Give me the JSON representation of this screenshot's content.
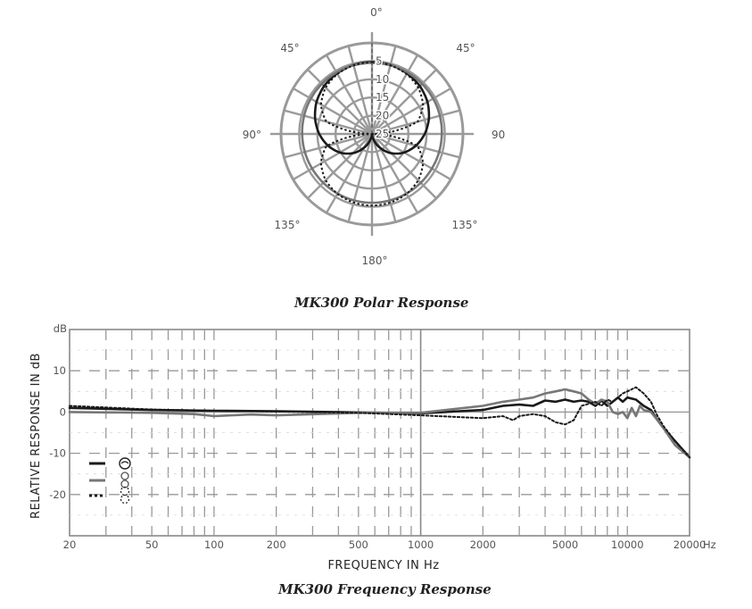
{
  "polar": {
    "caption": "MK300 Polar Response",
    "angle_labels": [
      "0°",
      "45°",
      "45°",
      "90°",
      "90",
      "135°",
      "135°",
      "180°"
    ],
    "ring_labels": [
      "5",
      "10",
      "15",
      "20",
      "25"
    ]
  },
  "frequency": {
    "caption": "MK300 Frequency Response",
    "xlabel": "FREQUENCY IN Hz",
    "ylabel": "RELATIVE RESPONSE IN dB",
    "db_unit": "dB",
    "hz_unit": "Hz"
  },
  "colors": {
    "solid": "#1a1a1a",
    "gray": "#777777",
    "dotted": "#1a1a1a",
    "grid": "#888888"
  },
  "chart_data": [
    {
      "type": "polar",
      "title": "MK300 Polar Response",
      "r_ticks_db": [
        -5,
        -10,
        -15,
        -20,
        -25
      ],
      "r_range_db": [
        -25,
        0
      ],
      "angle_step_deg": 15,
      "series": [
        {
          "style": "solid",
          "pattern": "cardioid",
          "angles": [
            0,
            15,
            30,
            45,
            60,
            75,
            90,
            105,
            120,
            135,
            150,
            165,
            180,
            195,
            210,
            225,
            240,
            255,
            270,
            285,
            300,
            315,
            330,
            345
          ],
          "db": [
            -5.3,
            -5.4,
            -5.8,
            -6.4,
            -7.4,
            -8.8,
            -10.5,
            -12.5,
            -14.8,
            -17.5,
            -20.6,
            -23.5,
            -25,
            -23.5,
            -20.6,
            -17.5,
            -14.8,
            -12.5,
            -10.5,
            -8.8,
            -7.4,
            -6.4,
            -5.8,
            -5.4
          ]
        },
        {
          "style": "gray",
          "pattern": "omni",
          "angles": [
            0,
            30,
            60,
            90,
            120,
            150,
            180,
            210,
            240,
            270,
            300,
            330
          ],
          "db": [
            -5.5,
            -5.5,
            -5.6,
            -5.8,
            -6.0,
            -6.1,
            -6.1,
            -6.1,
            -6.0,
            -5.8,
            -5.6,
            -5.5
          ]
        },
        {
          "style": "dotted",
          "pattern": "figure-8",
          "angles": [
            0,
            15,
            30,
            45,
            60,
            75,
            90,
            105,
            120,
            135,
            150,
            165,
            180,
            195,
            210,
            225,
            240,
            255,
            270,
            285,
            300,
            315,
            330,
            345
          ],
          "db": [
            -5.3,
            -5.5,
            -6.0,
            -7.0,
            -8.8,
            -12.0,
            -25,
            -12.0,
            -8.8,
            -7.0,
            -6.0,
            -5.5,
            -5.3,
            -5.5,
            -6.0,
            -7.0,
            -8.8,
            -12.0,
            -25,
            -12.0,
            -8.8,
            -7.0,
            -6.0,
            -5.5
          ]
        }
      ]
    },
    {
      "type": "line",
      "title": "MK300 Frequency Response",
      "xlabel": "FREQUENCY IN Hz",
      "ylabel": "RELATIVE RESPONSE IN dB",
      "x_scale": "log",
      "xlim": [
        20,
        20000
      ],
      "ylim": [
        -30,
        20
      ],
      "x_ticks": [
        20,
        50,
        100,
        200,
        500,
        1000,
        2000,
        5000,
        10000,
        20000
      ],
      "x_tick_labels": [
        "20",
        "50",
        "100",
        "200",
        "500",
        "1000",
        "2000",
        "5000",
        "10000",
        "20000"
      ],
      "y_ticks": [
        10,
        0,
        -10,
        -20
      ],
      "y_tick_labels": [
        "10",
        "0",
        "-10",
        "-20"
      ],
      "grid": true,
      "legend": [
        "cardioid",
        "omni",
        "figure-8"
      ],
      "series": [
        {
          "style": "solid",
          "pattern": "cardioid",
          "x": [
            20,
            50,
            100,
            200,
            500,
            1000,
            1300,
            2000,
            2500,
            3000,
            3500,
            4000,
            4500,
            5000,
            5500,
            6000,
            6500,
            7000,
            7500,
            8000,
            8500,
            9000,
            9500,
            10000,
            11000,
            12000,
            13000,
            14000,
            15000,
            17000,
            20000
          ],
          "y": [
            1,
            0.5,
            0.3,
            0.2,
            -0.1,
            -0.3,
            0,
            0.5,
            1.5,
            1.8,
            1.5,
            2.8,
            2.5,
            3,
            2.5,
            2.8,
            2.5,
            1.5,
            2.8,
            1.5,
            2.5,
            3.5,
            2.5,
            3.5,
            3,
            1.5,
            0.5,
            -2,
            -4,
            -7,
            -11
          ]
        },
        {
          "style": "gray",
          "pattern": "omni",
          "x": [
            20,
            50,
            80,
            100,
            150,
            200,
            500,
            1000,
            2000,
            2500,
            3000,
            3500,
            4000,
            4500,
            5000,
            5500,
            6000,
            6500,
            7000,
            7500,
            8000,
            8500,
            9000,
            9500,
            10000,
            10500,
            11000,
            11500,
            12000,
            13000,
            14000,
            15000,
            17000,
            20000
          ],
          "y": [
            0,
            -0.2,
            -0.5,
            -1,
            -0.6,
            -0.8,
            -0.2,
            -0.2,
            1.5,
            2.5,
            3,
            3.5,
            4.5,
            5,
            5.5,
            5,
            4.5,
            3,
            2,
            3,
            2.5,
            0,
            -0.5,
            0,
            -1.5,
            1,
            -1,
            1.5,
            0.5,
            0,
            -2,
            -4,
            -8,
            -11
          ]
        },
        {
          "style": "dotted",
          "pattern": "figure-8",
          "x": [
            20,
            50,
            100,
            200,
            500,
            1000,
            2000,
            2500,
            2800,
            3000,
            3500,
            4000,
            4500,
            5000,
            5500,
            6000,
            6500,
            7000,
            7500,
            8000,
            8500,
            9000,
            9500,
            10000,
            11000,
            12000,
            13000,
            14000,
            15000,
            17000,
            20000
          ],
          "y": [
            1.5,
            0.6,
            0.3,
            0.1,
            -0.2,
            -0.8,
            -1.5,
            -1,
            -2,
            -1,
            -0.5,
            -1,
            -2.5,
            -3,
            -2,
            1.5,
            2,
            2.5,
            1.5,
            3,
            2.5,
            3.5,
            4.5,
            5,
            6,
            4.5,
            2.5,
            -1,
            -3.5,
            -7,
            -11
          ]
        }
      ]
    }
  ]
}
